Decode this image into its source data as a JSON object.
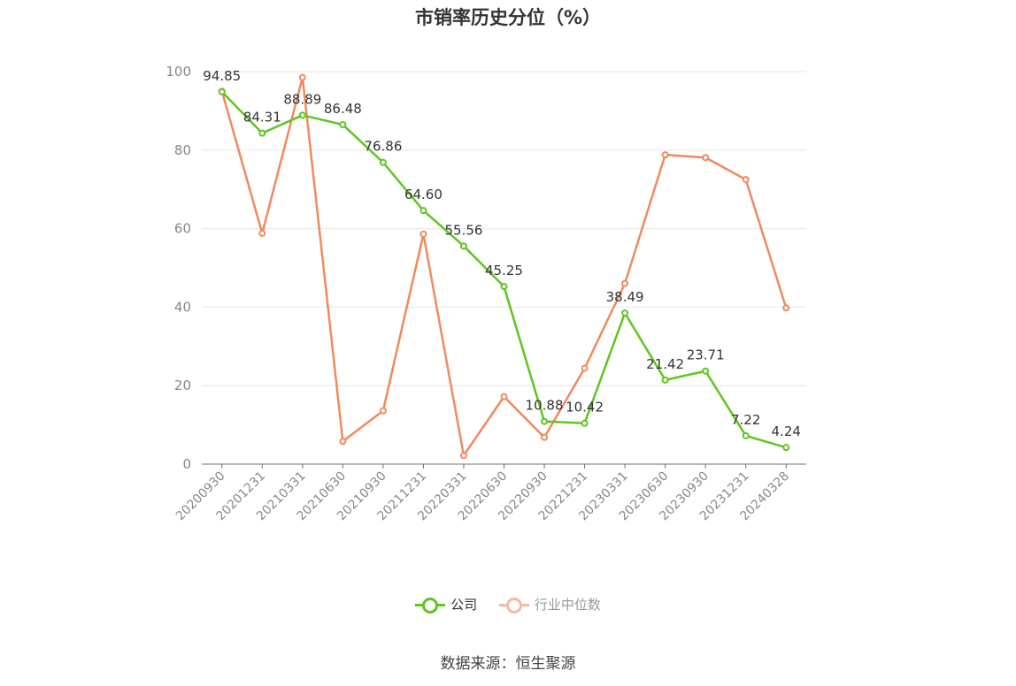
{
  "chart_data": {
    "type": "line",
    "title": "市销率历史分位（%）",
    "categories": [
      "20200930",
      "20201231",
      "20210331",
      "20210630",
      "20210930",
      "20211231",
      "20220331",
      "20220630",
      "20220930",
      "20221231",
      "20230331",
      "20230630",
      "20230930",
      "20231231",
      "20240328"
    ],
    "series": [
      {
        "name": "公司",
        "color": "#5cc61f",
        "values": [
          94.85,
          84.31,
          88.89,
          86.48,
          76.86,
          64.6,
          55.56,
          45.25,
          10.88,
          10.42,
          38.49,
          21.42,
          23.71,
          7.22,
          4.24
        ],
        "labels": [
          "94.85",
          "84.31",
          "88.89",
          "86.48",
          "76.86",
          "64.60",
          "55.56",
          "45.25",
          "10.88",
          "10.42",
          "38.49",
          "21.42",
          "23.71",
          "7.22",
          "4.24"
        ]
      },
      {
        "name": "行业中位数",
        "color": "#f08a5d",
        "values": [
          95.0,
          58.8,
          98.5,
          5.8,
          13.6,
          58.6,
          2.2,
          17.2,
          6.8,
          24.4,
          46.0,
          78.8,
          78.1,
          72.5,
          39.8
        ]
      }
    ],
    "y_ticks": [
      "0",
      "20",
      "40",
      "60",
      "80",
      "100"
    ],
    "ylim": [
      0,
      100
    ],
    "grid": true,
    "legend_position": "bottom"
  },
  "legend": {
    "company": "公司",
    "industry": "行业中位数",
    "industry_dim_color": "#f5b8a0"
  },
  "source": "数据来源：恒生聚源"
}
